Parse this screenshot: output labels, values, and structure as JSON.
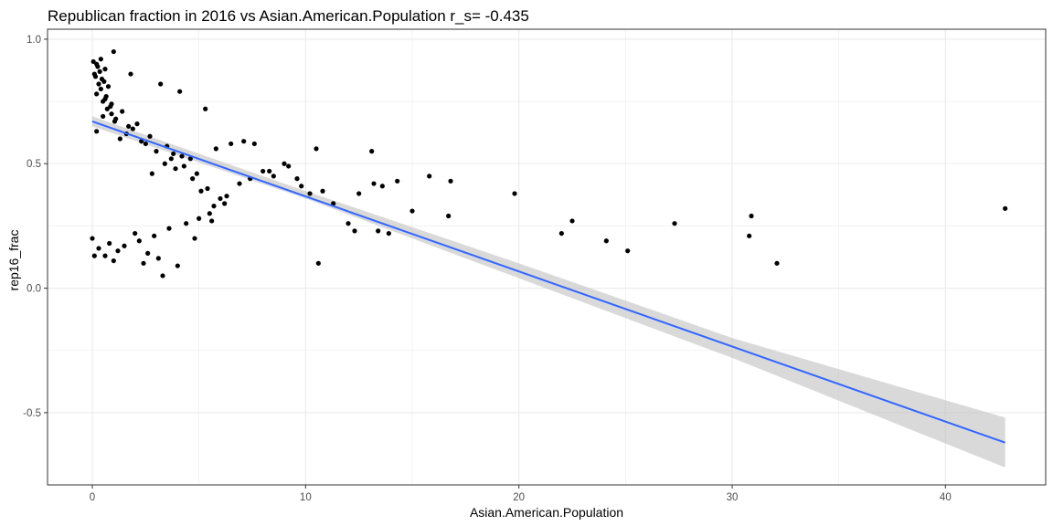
{
  "chart_data": {
    "type": "scatter",
    "title": "Republican fraction in 2016 vs Asian.American.Population  r_s= -0.435",
    "xlabel": "Asian.American.Population",
    "ylabel": "rep16_frac",
    "xlim": [
      -2.1,
      44.7
    ],
    "ylim": [
      -0.79,
      1.04
    ],
    "x_ticks": [
      0,
      10,
      20,
      30,
      40
    ],
    "x_tick_labels": [
      "0",
      "10",
      "20",
      "30",
      "40"
    ],
    "y_ticks": [
      -0.5,
      0,
      0.5,
      1
    ],
    "y_tick_labels": [
      "-0.5",
      "0.0",
      "0.5",
      "1.0"
    ],
    "grid": true,
    "legend": "none",
    "colors": {
      "points": "#000000",
      "fit_line": "#3366FF",
      "ribbon": "#BFBFBF",
      "grid": "#EBEBEB",
      "panel_border": "#333333"
    },
    "series": [
      {
        "values_x": [
          1.0,
          0.4,
          0.2,
          0.6,
          1.8,
          3.2,
          4.1,
          5.3,
          6.5,
          7.1,
          7.6,
          8.3,
          9.0,
          9.6,
          10.2,
          10.5,
          10.6,
          12.0,
          12.3,
          13.1,
          13.2,
          13.4,
          13.6,
          13.9,
          14.3,
          15.0,
          15.8,
          16.7,
          16.8,
          19.8,
          22.0,
          22.5,
          24.1,
          25.1,
          27.3,
          30.8,
          30.9,
          32.1,
          42.8,
          3.3,
          2.4,
          4.0,
          1.0,
          0.6,
          0.1,
          0.0,
          0.3,
          0.8,
          1.2,
          1.5,
          2.0,
          2.2,
          2.6,
          2.9,
          3.1,
          3.6,
          4.4,
          4.8,
          5.0,
          5.5,
          5.7,
          6.0,
          6.2,
          6.9,
          7.4,
          8.0,
          8.5,
          9.2,
          9.8,
          10.8,
          11.3,
          12.5,
          5.8,
          4.6,
          3.9,
          3.4,
          2.8,
          1.7,
          1.3,
          0.9,
          0.5,
          0.2,
          0.7,
          1.1,
          1.6,
          2.5,
          3.0,
          3.7,
          4.3,
          4.9,
          5.4,
          6.3,
          0.3,
          0.1,
          0.4,
          0.6,
          1.4,
          2.1,
          2.7,
          3.5,
          4.2,
          4.7,
          5.1,
          5.6,
          0.2,
          0.5,
          0.9,
          1.9,
          2.3,
          3.8,
          0.15,
          0.35,
          0.55,
          0.75,
          0.05,
          0.25,
          0.45,
          0.65,
          0.85,
          1.05
        ],
        "values_y": [
          0.95,
          0.92,
          0.9,
          0.88,
          0.86,
          0.82,
          0.79,
          0.72,
          0.58,
          0.59,
          0.58,
          0.47,
          0.5,
          0.44,
          0.38,
          0.56,
          0.1,
          0.26,
          0.23,
          0.55,
          0.42,
          0.23,
          0.41,
          0.22,
          0.43,
          0.31,
          0.45,
          0.29,
          0.43,
          0.38,
          0.22,
          0.27,
          0.19,
          0.15,
          0.26,
          0.21,
          0.29,
          0.1,
          0.32,
          0.05,
          0.1,
          0.09,
          0.11,
          0.13,
          0.13,
          0.2,
          0.16,
          0.18,
          0.15,
          0.17,
          0.22,
          0.19,
          0.14,
          0.21,
          0.12,
          0.24,
          0.26,
          0.2,
          0.28,
          0.3,
          0.33,
          0.36,
          0.34,
          0.42,
          0.44,
          0.47,
          0.45,
          0.49,
          0.41,
          0.39,
          0.34,
          0.38,
          0.56,
          0.52,
          0.48,
          0.5,
          0.46,
          0.65,
          0.6,
          0.7,
          0.75,
          0.78,
          0.72,
          0.68,
          0.62,
          0.58,
          0.55,
          0.52,
          0.49,
          0.46,
          0.4,
          0.37,
          0.82,
          0.86,
          0.8,
          0.76,
          0.71,
          0.66,
          0.61,
          0.57,
          0.53,
          0.44,
          0.39,
          0.27,
          0.63,
          0.69,
          0.74,
          0.64,
          0.59,
          0.54,
          0.85,
          0.87,
          0.83,
          0.81,
          0.91,
          0.89,
          0.84,
          0.77,
          0.73,
          0.67
        ],
        "fit_line": {
          "x": [
            0.0,
            42.8
          ],
          "y": [
            0.67,
            -0.62
          ]
        },
        "ribbon": {
          "x": [
            0.0,
            10.0,
            20.0,
            30.0,
            42.8
          ],
          "lower": [
            0.65,
            0.36,
            0.04,
            -0.28,
            -0.72
          ],
          "upper": [
            0.69,
            0.39,
            0.1,
            -0.2,
            -0.52
          ]
        }
      }
    ]
  }
}
